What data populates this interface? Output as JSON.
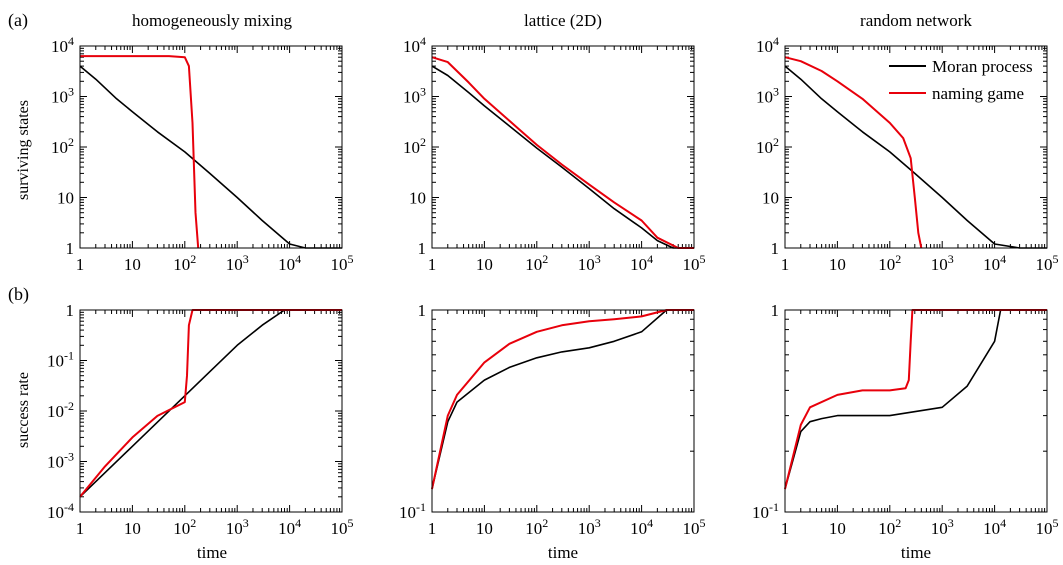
{
  "figure": {
    "panel_tags": [
      "(a)",
      "(b)"
    ],
    "column_titles": [
      "homogeneously mixing",
      "lattice (2D)",
      "random network"
    ],
    "row_a_ylabel": "surviving states",
    "row_b_ylabel": "success rate",
    "xlabel": "time",
    "legend": [
      "Moran process",
      "naming game"
    ],
    "colors": {
      "moran": "#000000",
      "naming": "#e8000b"
    }
  },
  "chart_data": [
    {
      "type": "line",
      "title": "homogeneously mixing",
      "ylabel": "surviving states",
      "xlabel": "",
      "xscale": "log",
      "yscale": "log",
      "xlim": [
        1,
        100000
      ],
      "ylim": [
        1,
        10000
      ],
      "xticks": [
        "1",
        "10",
        "10^2",
        "10^3",
        "10^4",
        "10^5"
      ],
      "yticks": [
        "1",
        "10",
        "10^2",
        "10^3",
        "10^4"
      ],
      "series": [
        {
          "name": "Moran process",
          "x": [
            1,
            2,
            5,
            10,
            30,
            100,
            300,
            1000,
            3000,
            10000,
            20000,
            100000
          ],
          "y": [
            4000,
            2200,
            900,
            500,
            200,
            80,
            30,
            10,
            3.5,
            1.2,
            1,
            1
          ]
        },
        {
          "name": "naming game",
          "x": [
            1,
            50,
            100,
            120,
            140,
            160,
            180
          ],
          "y": [
            6300,
            6300,
            6000,
            4000,
            300,
            5,
            1
          ]
        }
      ]
    },
    {
      "type": "line",
      "title": "lattice (2D)",
      "ylabel": "",
      "xlabel": "",
      "xscale": "log",
      "yscale": "log",
      "xlim": [
        1,
        100000
      ],
      "ylim": [
        1,
        10000
      ],
      "xticks": [
        "1",
        "10",
        "10^2",
        "10^3",
        "10^4",
        "10^5"
      ],
      "yticks": [
        "1",
        "10",
        "10^2",
        "10^3",
        "10^4"
      ],
      "series": [
        {
          "name": "Moran process",
          "x": [
            1,
            2,
            5,
            10,
            30,
            100,
            300,
            1000,
            3000,
            10000,
            20000,
            40000,
            100000
          ],
          "y": [
            4000,
            2600,
            1200,
            650,
            260,
            95,
            40,
            15,
            6,
            2.5,
            1.4,
            1,
            1
          ]
        },
        {
          "name": "naming game",
          "x": [
            1,
            2,
            5,
            10,
            30,
            100,
            300,
            1000,
            3000,
            10000,
            20000,
            50000,
            100000
          ],
          "y": [
            6000,
            4800,
            1900,
            900,
            330,
            110,
            45,
            18,
            8,
            3.5,
            1.6,
            1,
            1
          ]
        }
      ]
    },
    {
      "type": "line",
      "title": "random network",
      "ylabel": "",
      "xlabel": "",
      "xscale": "log",
      "yscale": "log",
      "xlim": [
        1,
        100000
      ],
      "ylim": [
        1,
        10000
      ],
      "xticks": [
        "1",
        "10",
        "10^2",
        "10^3",
        "10^4",
        "10^5"
      ],
      "yticks": [
        "1",
        "10",
        "10^2",
        "10^3",
        "10^4"
      ],
      "legend": [
        "Moran process",
        "naming game"
      ],
      "legend_position": "top-right",
      "series": [
        {
          "name": "Moran process",
          "x": [
            1,
            2,
            5,
            10,
            30,
            100,
            300,
            1000,
            3000,
            10000,
            30000,
            100000
          ],
          "y": [
            4000,
            2200,
            900,
            500,
            200,
            80,
            30,
            10,
            3.5,
            1.2,
            1,
            1
          ]
        },
        {
          "name": "naming game",
          "x": [
            1,
            2,
            5,
            10,
            30,
            100,
            180,
            250,
            300,
            350,
            400
          ],
          "y": [
            6000,
            5000,
            3200,
            2000,
            900,
            300,
            150,
            60,
            10,
            2,
            1
          ]
        }
      ]
    },
    {
      "type": "line",
      "title": "",
      "ylabel": "success rate",
      "xlabel": "time",
      "xscale": "log",
      "yscale": "log",
      "xlim": [
        1,
        100000
      ],
      "ylim": [
        0.0001,
        1
      ],
      "xticks": [
        "1",
        "10",
        "10^2",
        "10^3",
        "10^4",
        "10^5"
      ],
      "yticks": [
        "10^-4",
        "10^-3",
        "10^-2",
        "10^-1",
        "1"
      ],
      "series": [
        {
          "name": "Moran process",
          "x": [
            1,
            3,
            10,
            30,
            100,
            300,
            1000,
            3000,
            8000
          ],
          "y": [
            0.0002,
            0.0006,
            0.002,
            0.006,
            0.02,
            0.06,
            0.2,
            0.5,
            1
          ]
        },
        {
          "name": "naming game",
          "x": [
            1,
            3,
            10,
            30,
            100,
            110,
            120,
            140,
            100000
          ],
          "y": [
            0.0002,
            0.0008,
            0.003,
            0.008,
            0.015,
            0.05,
            0.5,
            1,
            1
          ]
        }
      ]
    },
    {
      "type": "line",
      "title": "",
      "ylabel": "",
      "xlabel": "time",
      "xscale": "log",
      "yscale": "log",
      "xlim": [
        1,
        100000
      ],
      "ylim": [
        0.1,
        1
      ],
      "xticks": [
        "1",
        "10",
        "10^2",
        "10^3",
        "10^4",
        "10^5"
      ],
      "yticks": [
        "10^-1",
        "1"
      ],
      "series": [
        {
          "name": "Moran process",
          "x": [
            1,
            2,
            3,
            10,
            30,
            100,
            300,
            1000,
            3000,
            10000,
            30000
          ],
          "y": [
            0.13,
            0.28,
            0.35,
            0.45,
            0.52,
            0.58,
            0.62,
            0.65,
            0.7,
            0.78,
            1
          ]
        },
        {
          "name": "naming game",
          "x": [
            1,
            2,
            3,
            10,
            30,
            100,
            300,
            1000,
            3000,
            10000,
            30000,
            100000
          ],
          "y": [
            0.13,
            0.3,
            0.38,
            0.55,
            0.68,
            0.78,
            0.84,
            0.88,
            0.9,
            0.93,
            1,
            1
          ]
        }
      ]
    },
    {
      "type": "line",
      "title": "",
      "ylabel": "",
      "xlabel": "time",
      "xscale": "log",
      "yscale": "log",
      "xlim": [
        1,
        100000
      ],
      "ylim": [
        0.1,
        1
      ],
      "xticks": [
        "1",
        "10",
        "10^2",
        "10^3",
        "10^4",
        "10^5"
      ],
      "yticks": [
        "10^-1",
        "1"
      ],
      "series": [
        {
          "name": "Moran process",
          "x": [
            1,
            2,
            3,
            5,
            10,
            100,
            1000,
            3000,
            10000,
            13000
          ],
          "y": [
            0.13,
            0.25,
            0.28,
            0.29,
            0.3,
            0.3,
            0.33,
            0.42,
            0.7,
            1
          ]
        },
        {
          "name": "naming game",
          "x": [
            1,
            2,
            3,
            10,
            30,
            100,
            200,
            230,
            250,
            270,
            300,
            100000
          ],
          "y": [
            0.13,
            0.27,
            0.33,
            0.38,
            0.4,
            0.4,
            0.41,
            0.45,
            0.7,
            1,
            1,
            1
          ]
        }
      ]
    }
  ]
}
